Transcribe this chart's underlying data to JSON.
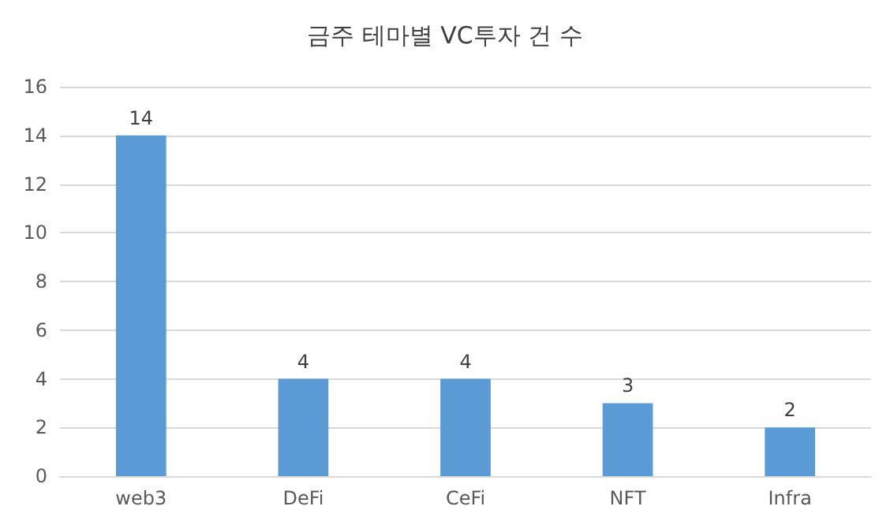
{
  "chart_data": {
    "type": "bar",
    "title": "금주 테마별 VC투자 건 수",
    "categories": [
      "web3",
      "DeFi",
      "CeFi",
      "NFT",
      "Infra"
    ],
    "values": [
      14,
      4,
      4,
      3,
      2
    ],
    "color": "#5b9bd5",
    "ylim": [
      0,
      16
    ],
    "yticks": [
      0,
      2,
      4,
      6,
      8,
      10,
      12,
      14,
      16
    ],
    "grid": "y",
    "data_labels": true
  }
}
